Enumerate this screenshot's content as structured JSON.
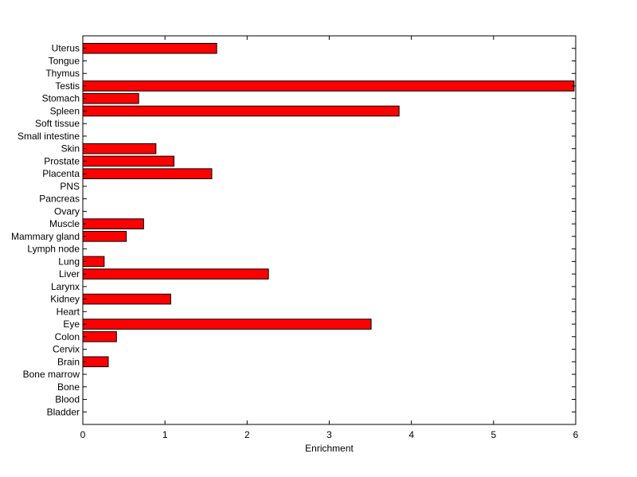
{
  "chart_data": {
    "type": "bar",
    "orientation": "horizontal",
    "title": "",
    "xlabel": "Enrichment",
    "ylabel": "",
    "xlim": [
      0,
      6
    ],
    "xticks": [
      "0",
      "1",
      "2",
      "3",
      "4",
      "5",
      "6"
    ],
    "grid": false,
    "legend": "none",
    "bar_color": "#ff0000",
    "bar_edge_color": "#000000",
    "categories": [
      "Bladder",
      "Blood",
      "Bone",
      "Bone marrow",
      "Brain",
      "Cervix",
      "Colon",
      "Eye",
      "Heart",
      "Kidney",
      "Larynx",
      "Liver",
      "Lung",
      "Lymph node",
      "Mammary gland",
      "Muscle",
      "Ovary",
      "Pancreas",
      "PNS",
      "Placenta",
      "Prostate",
      "Skin",
      "Small intestine",
      "Soft tissue",
      "Spleen",
      "Stomach",
      "Testis",
      "Thymus",
      "Tongue",
      "Uterus"
    ],
    "values": [
      0,
      0,
      0,
      0,
      0.31,
      0,
      0.41,
      3.51,
      0,
      1.07,
      0,
      2.26,
      0.26,
      0,
      0.53,
      0.74,
      0,
      0,
      0,
      1.57,
      1.11,
      0.89,
      0,
      0,
      3.85,
      0.68,
      5.98,
      0,
      0,
      1.63
    ]
  }
}
